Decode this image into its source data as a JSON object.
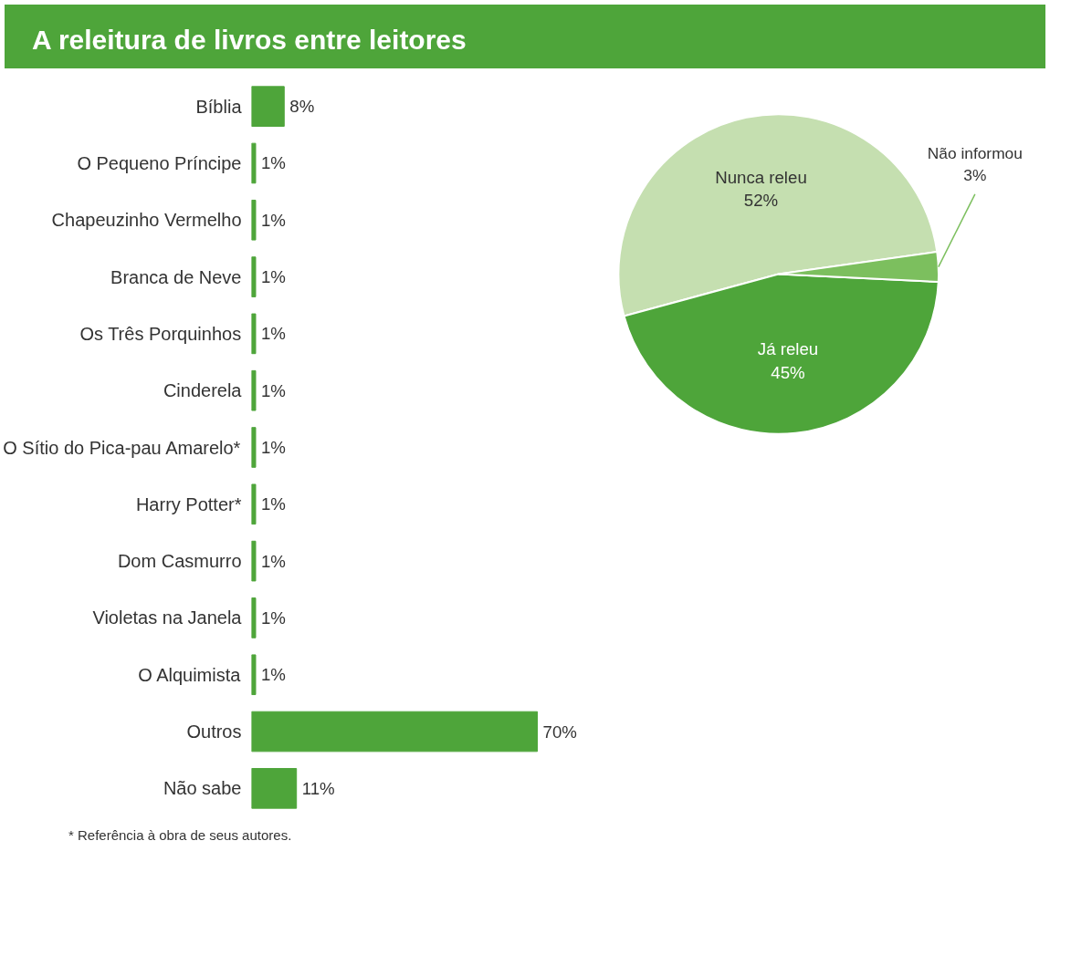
{
  "chart_data": [
    {
      "type": "bar",
      "orientation": "horizontal",
      "title": "A releitura de livros entre leitores",
      "categories": [
        "Bíblia",
        "O Pequeno Príncipe",
        "Chapeuzinho Vermelho",
        "Branca de Neve",
        "Os Três Porquinhos",
        "Cinderela",
        "O Sítio do Pica-pau Amarelo*",
        "Harry Potter*",
        "Dom Casmurro",
        "Violetas na Janela",
        "O Alquimista",
        "Outros",
        "Não sabe"
      ],
      "values": [
        8,
        1,
        1,
        1,
        1,
        1,
        1,
        1,
        1,
        1,
        1,
        70,
        11
      ],
      "value_labels": [
        "8%",
        "1%",
        "1%",
        "1%",
        "1%",
        "1%",
        "1%",
        "1%",
        "1%",
        "1%",
        "1%",
        "70%",
        "11%"
      ],
      "color": "#4ea53a",
      "annotations": [
        "* Referência à obra de seus autores."
      ]
    },
    {
      "type": "pie",
      "categories": [
        "Nunca releu",
        "Já releu",
        "Não informou"
      ],
      "values": [
        52,
        45,
        3
      ],
      "value_labels": [
        "52%",
        "45%",
        "3%"
      ],
      "colors": [
        "#c5dfb0",
        "#4ea53a",
        "#7cbf5e"
      ]
    }
  ]
}
